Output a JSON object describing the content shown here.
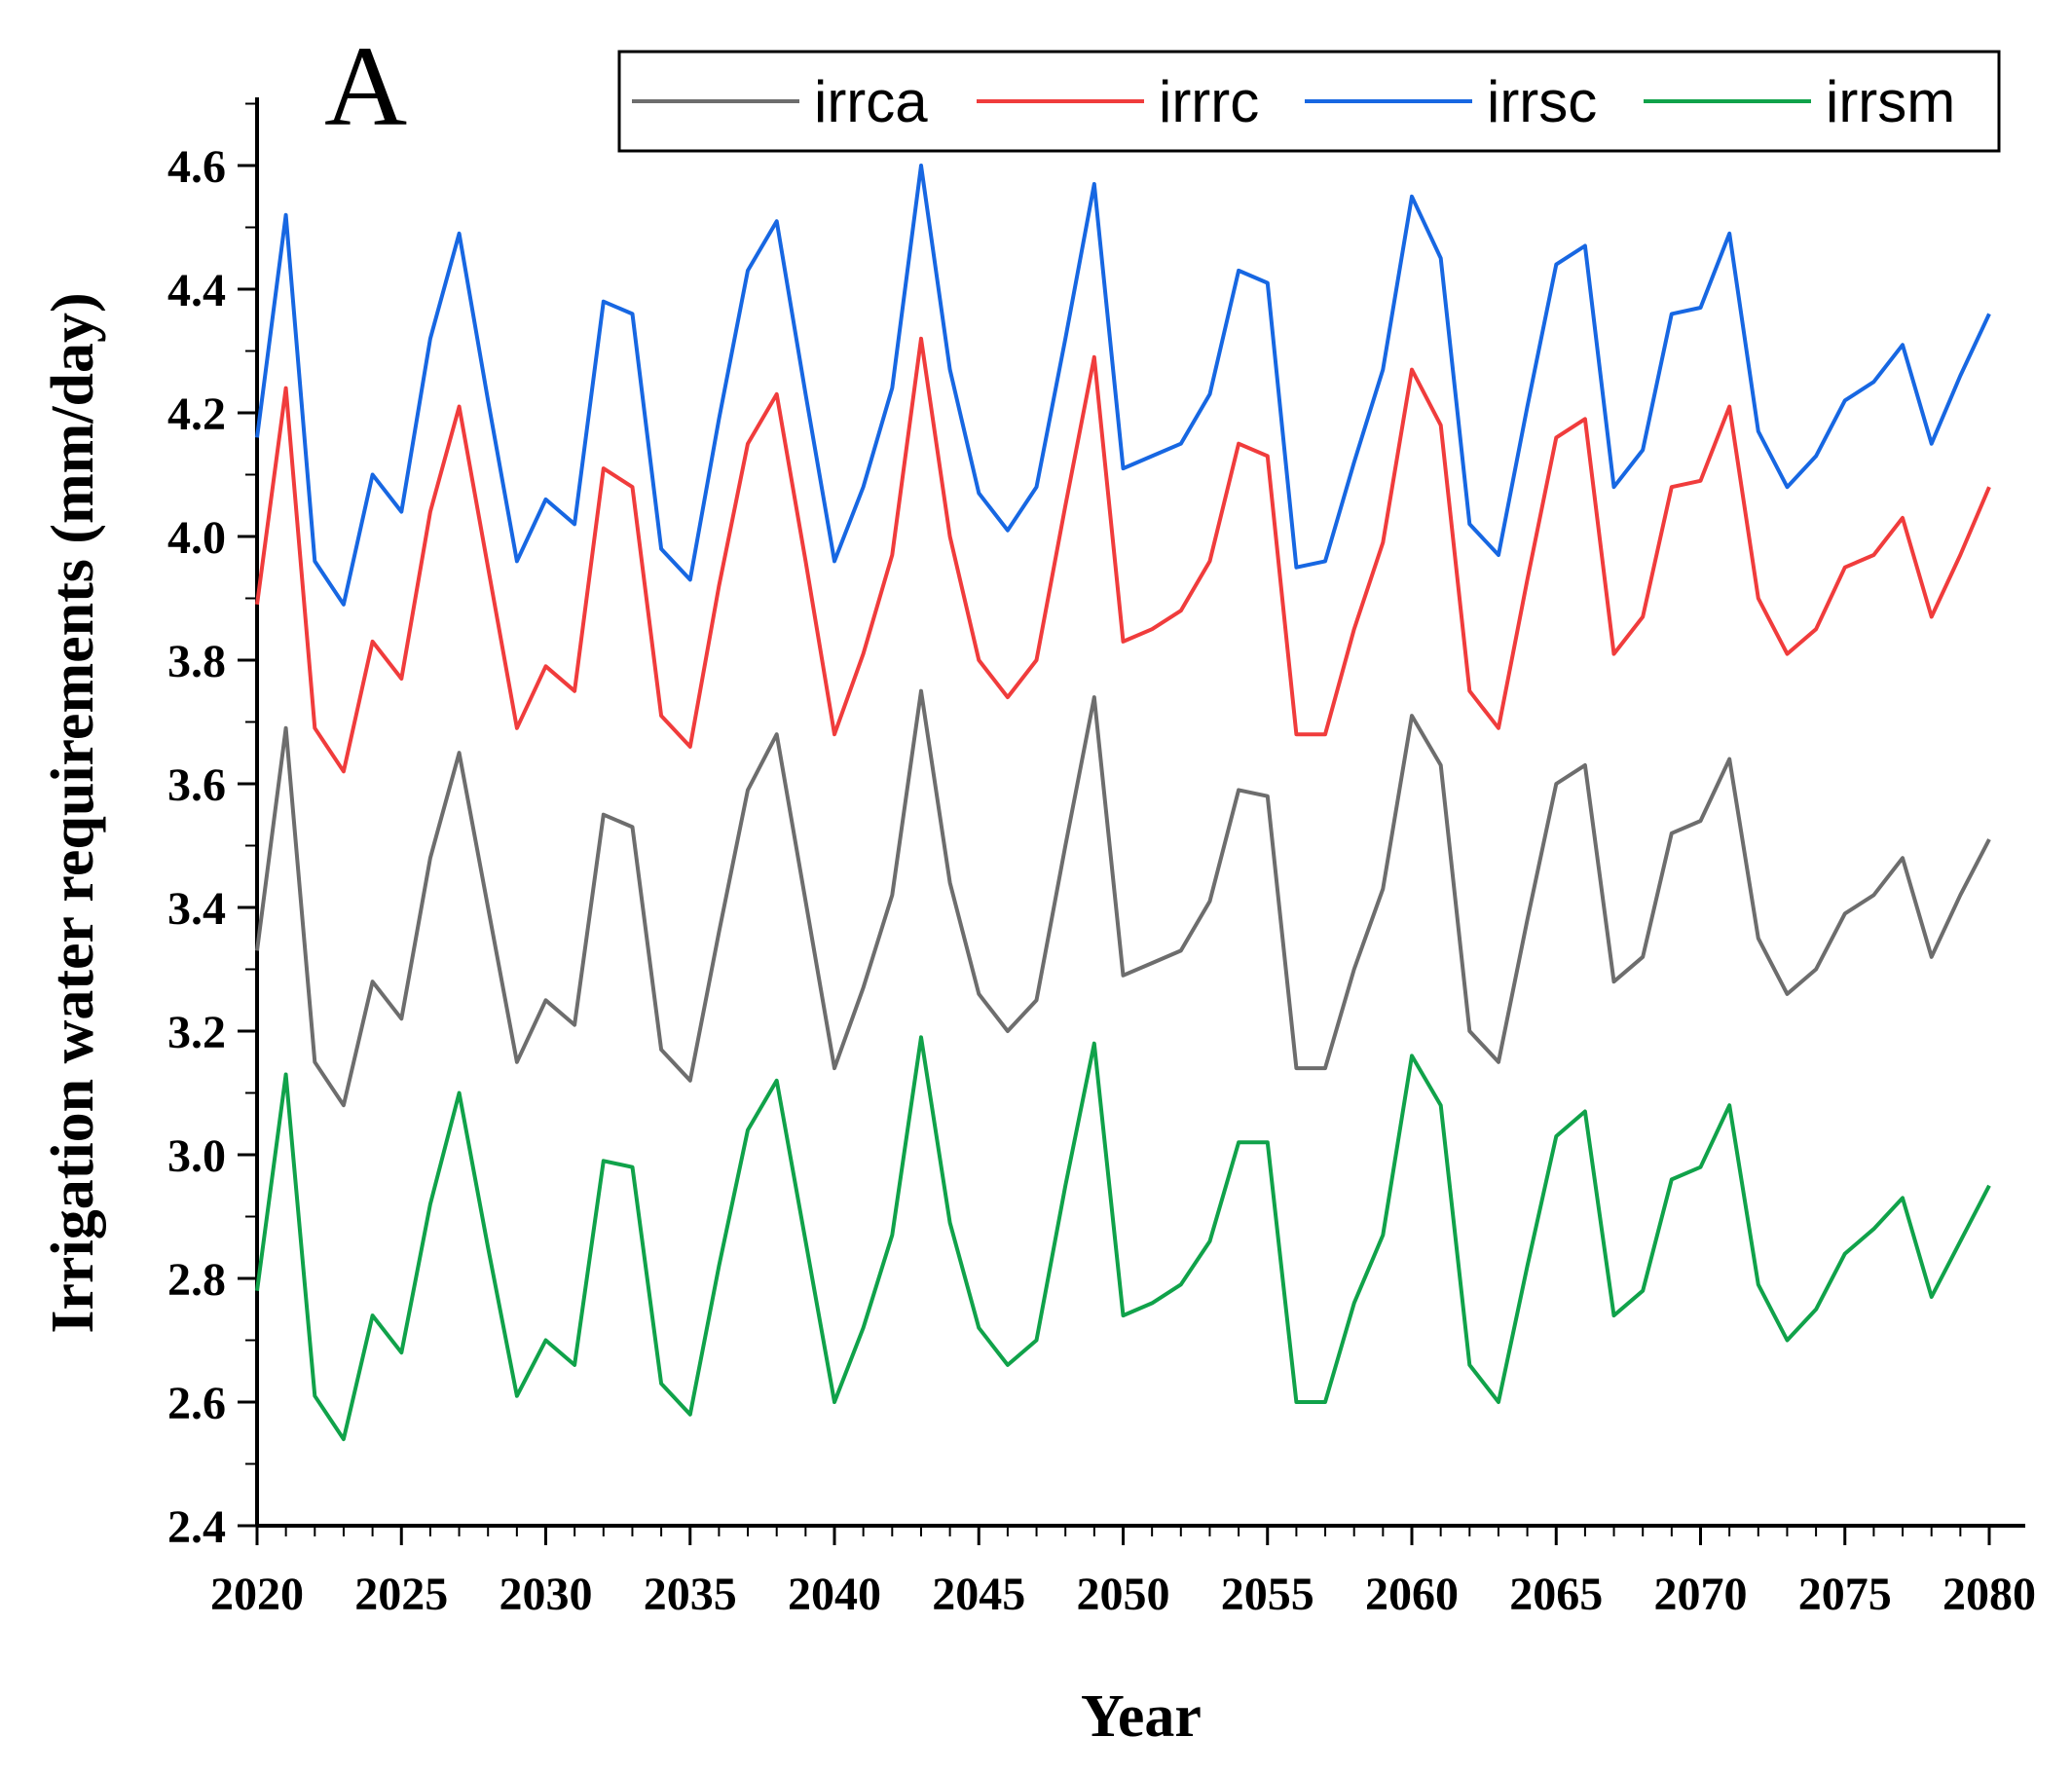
{
  "chart_data": {
    "type": "line",
    "panel_label": "A",
    "xlabel": "Year",
    "ylabel": "Irrigation water requirements (mm/day)",
    "xlim": [
      2020,
      2080
    ],
    "ylim": [
      2.4,
      4.7
    ],
    "x_ticks": [
      2020,
      2025,
      2030,
      2035,
      2040,
      2045,
      2050,
      2055,
      2060,
      2065,
      2070,
      2075,
      2080
    ],
    "y_ticks": [
      "2.4",
      "2.6",
      "2.8",
      "3.0",
      "3.2",
      "3.4",
      "3.6",
      "3.8",
      "4.0",
      "4.2",
      "4.4",
      "4.6"
    ],
    "legend_position": "top",
    "x": [
      2020,
      2021,
      2022,
      2023,
      2024,
      2025,
      2026,
      2027,
      2028,
      2029,
      2030,
      2031,
      2032,
      2033,
      2034,
      2035,
      2036,
      2037,
      2038,
      2039,
      2040,
      2041,
      2042,
      2043,
      2044,
      2045,
      2046,
      2047,
      2048,
      2049,
      2050,
      2051,
      2052,
      2053,
      2054,
      2055,
      2056,
      2057,
      2058,
      2059,
      2060,
      2061,
      2062,
      2063,
      2064,
      2065,
      2066,
      2067,
      2068,
      2069,
      2070,
      2071,
      2072,
      2073,
      2074,
      2075,
      2076,
      2077,
      2078,
      2079,
      2080
    ],
    "series": [
      {
        "name": "irrca",
        "color": "#6d6d6d",
        "values": [
          3.33,
          3.69,
          3.15,
          3.08,
          3.28,
          3.22,
          3.48,
          3.65,
          3.4,
          3.15,
          3.25,
          3.21,
          3.55,
          3.53,
          3.17,
          3.12,
          3.36,
          3.59,
          3.68,
          3.41,
          3.14,
          3.27,
          3.42,
          3.75,
          3.44,
          3.26,
          3.2,
          3.25,
          3.5,
          3.74,
          3.29,
          3.31,
          3.33,
          3.41,
          3.59,
          3.58,
          3.14,
          3.14,
          3.3,
          3.43,
          3.71,
          3.63,
          3.2,
          3.15,
          3.38,
          3.6,
          3.63,
          3.28,
          3.32,
          3.52,
          3.54,
          3.64,
          3.35,
          3.26,
          3.3,
          3.39,
          3.42,
          3.48,
          3.32,
          3.42,
          3.51
        ]
      },
      {
        "name": "irrrc",
        "color": "#f03c3c",
        "values": [
          3.89,
          4.24,
          3.69,
          3.62,
          3.83,
          3.77,
          4.04,
          4.21,
          3.95,
          3.69,
          3.79,
          3.75,
          4.11,
          4.08,
          3.71,
          3.66,
          3.92,
          4.15,
          4.23,
          3.96,
          3.68,
          3.81,
          3.97,
          4.32,
          4.0,
          3.8,
          3.74,
          3.8,
          4.05,
          4.29,
          3.83,
          3.85,
          3.88,
          3.96,
          4.15,
          4.13,
          3.68,
          3.68,
          3.85,
          3.99,
          4.27,
          4.18,
          3.75,
          3.69,
          3.93,
          4.16,
          4.19,
          3.81,
          3.87,
          4.08,
          4.09,
          4.21,
          3.9,
          3.81,
          3.85,
          3.95,
          3.97,
          4.03,
          3.87,
          3.97,
          4.08
        ]
      },
      {
        "name": "irrsc",
        "color": "#1767e2",
        "values": [
          4.16,
          4.52,
          3.96,
          3.89,
          4.1,
          4.04,
          4.32,
          4.49,
          4.22,
          3.96,
          4.06,
          4.02,
          4.38,
          4.36,
          3.98,
          3.93,
          4.19,
          4.43,
          4.51,
          4.23,
          3.96,
          4.08,
          4.24,
          4.6,
          4.27,
          4.07,
          4.01,
          4.08,
          4.32,
          4.57,
          4.11,
          4.13,
          4.15,
          4.23,
          4.43,
          4.41,
          3.95,
          3.96,
          4.12,
          4.27,
          4.55,
          4.45,
          4.02,
          3.97,
          4.21,
          4.44,
          4.47,
          4.08,
          4.14,
          4.36,
          4.37,
          4.49,
          4.17,
          4.08,
          4.13,
          4.22,
          4.25,
          4.31,
          4.15,
          4.26,
          4.36
        ]
      },
      {
        "name": "irrsm",
        "color": "#10a24a",
        "values": [
          2.78,
          3.13,
          2.61,
          2.54,
          2.74,
          2.68,
          2.92,
          3.1,
          2.85,
          2.61,
          2.7,
          2.66,
          2.99,
          2.98,
          2.63,
          2.58,
          2.82,
          3.04,
          3.12,
          2.86,
          2.6,
          2.72,
          2.87,
          3.19,
          2.89,
          2.72,
          2.66,
          2.7,
          2.95,
          3.18,
          2.74,
          2.76,
          2.79,
          2.86,
          3.02,
          3.02,
          2.6,
          2.6,
          2.76,
          2.87,
          3.16,
          3.08,
          2.66,
          2.6,
          2.82,
          3.03,
          3.07,
          2.74,
          2.78,
          2.96,
          2.98,
          3.08,
          2.79,
          2.7,
          2.75,
          2.84,
          2.88,
          2.93,
          2.77,
          2.86,
          2.95
        ]
      }
    ]
  }
}
